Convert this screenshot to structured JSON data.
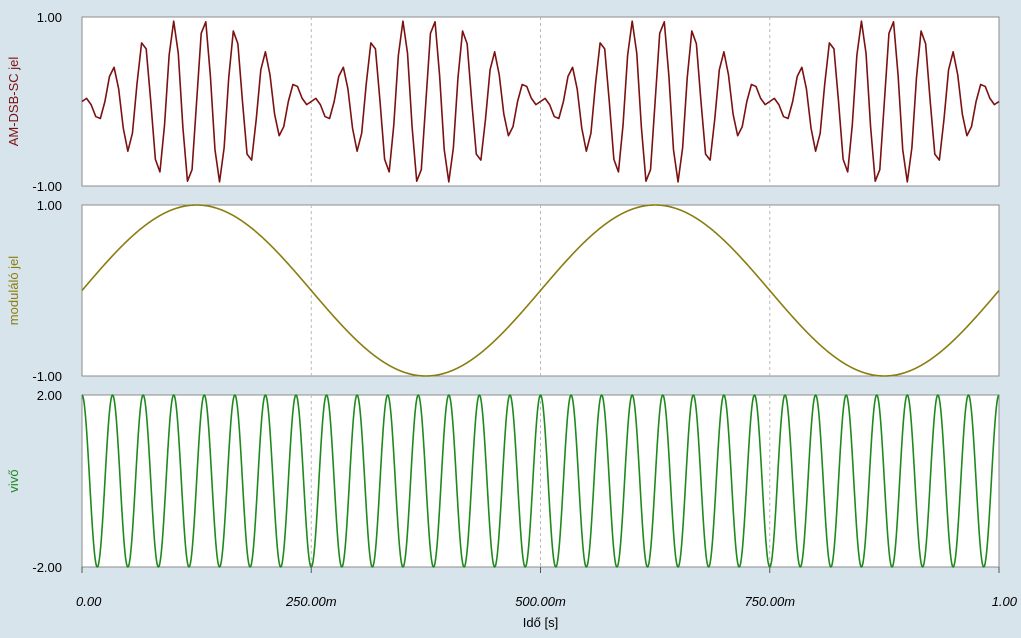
{
  "chart_data": {
    "type": "line",
    "x_axis": {
      "label": "Idő [s]",
      "range": [
        0,
        1
      ],
      "ticks": [
        0,
        0.25,
        0.5,
        0.75,
        1
      ],
      "tick_labels": [
        "0.00",
        "250.00m",
        "500.00m",
        "750.00m",
        "1.00"
      ]
    },
    "grid": "vertical dashed",
    "panels": [
      {
        "ylabel": "AM-DSB-SC jel",
        "ylim": [
          -1,
          1
        ],
        "y_tick_labels": [
          "1.00",
          "-1.00"
        ],
        "color": "#7b1111",
        "signal": {
          "kind": "am-dsb-sc",
          "modulation_frequency_hz": 2,
          "carrier_frequency_hz": 30,
          "amplitude": 1,
          "sample_step_s": 0.005
        }
      },
      {
        "ylabel": "moduláló jel",
        "ylim": [
          -1,
          1
        ],
        "y_tick_labels": [
          "1.00",
          "-1.00"
        ],
        "color": "#8a7d10",
        "signal": {
          "kind": "sine",
          "frequency_hz": 2,
          "amplitude": 1
        }
      },
      {
        "ylabel": "vivő",
        "ylim": [
          -2,
          2
        ],
        "y_tick_labels": [
          "2.00",
          "-2.00"
        ],
        "color": "#1e8a1e",
        "signal": {
          "kind": "cosine",
          "frequency_hz": 30,
          "amplitude": 2
        }
      }
    ]
  }
}
